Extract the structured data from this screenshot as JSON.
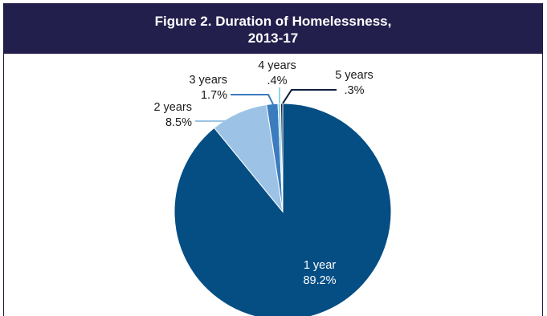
{
  "colors": {
    "header_bg": "#231f4c",
    "header_text": "#ffffff",
    "slice_1_year": "#044e84",
    "slice_2_years": "#9cc3e5",
    "slice_3_years": "#3b7cbf",
    "slice_4_years": "#8cd4e8",
    "slice_5_years": "#0d1e3a"
  },
  "chart_data": {
    "type": "pie",
    "title_lines": [
      "Figure 2. Duration of Homelessness,",
      "2013-17"
    ],
    "slices": [
      {
        "label": "1 year",
        "value": 89.2,
        "value_text": "89.2%"
      },
      {
        "label": "2 years",
        "value": 8.5,
        "value_text": "8.5%"
      },
      {
        "label": "3 years",
        "value": 1.7,
        "value_text": "1.7%"
      },
      {
        "label": "4 years",
        "value": 0.4,
        "value_text": ".4%"
      },
      {
        "label": "5 years",
        "value": 0.3,
        "value_text": ".3%"
      }
    ]
  }
}
